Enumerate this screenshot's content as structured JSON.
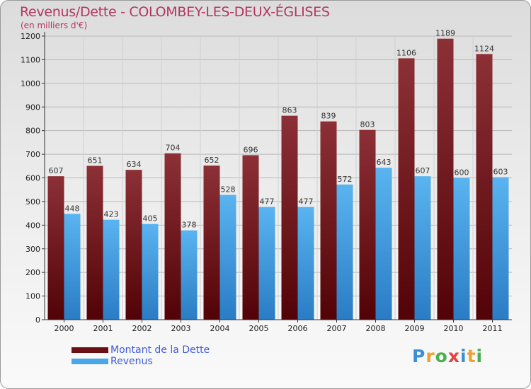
{
  "header": {
    "title": "Revenus/Dette - COLOMBEY-LES-DEUX-ÉGLISES",
    "subtitle": "(en milliers d'€)"
  },
  "chart_data": {
    "type": "bar",
    "categories": [
      "2000",
      "2001",
      "2002",
      "2003",
      "2004",
      "2005",
      "2006",
      "2007",
      "2008",
      "2009",
      "2010",
      "2011"
    ],
    "series": [
      {
        "name": "Montant de la Dette",
        "color": "#7a1e24",
        "values": [
          607,
          651,
          634,
          704,
          652,
          696,
          863,
          839,
          803,
          1106,
          1189,
          1124
        ]
      },
      {
        "name": "Revenus",
        "color": "#4aa6e8",
        "values": [
          448,
          423,
          405,
          378,
          528,
          477,
          477,
          572,
          643,
          607,
          600,
          603
        ]
      }
    ],
    "ylim": [
      0,
      1200
    ],
    "yticks": [
      0,
      100,
      200,
      300,
      400,
      500,
      600,
      700,
      800,
      900,
      1000,
      1100,
      1200
    ],
    "grid": true,
    "legend_position": "bottom-left"
  },
  "legend": {
    "items": [
      {
        "label": "Montant de la Dette",
        "color": "#6b0f14"
      },
      {
        "label": "Revenus",
        "color": "#4aa6e8"
      }
    ]
  },
  "logo": {
    "letters": [
      "P",
      "r",
      "o",
      "x",
      "i",
      "t",
      "i"
    ],
    "colors": [
      "#3a8fd6",
      "#f0a030",
      "#4caf50",
      "#e64040",
      "#3a8fd6",
      "#f0a030",
      "#4caf50"
    ]
  }
}
